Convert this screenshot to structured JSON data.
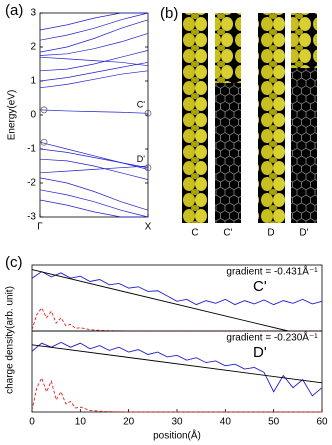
{
  "chart_data": [
    {
      "type": "line",
      "panel": "(a)",
      "y_label": "Energy(eV)",
      "xlim": [
        0,
        1
      ],
      "ylim": [
        -3,
        3
      ],
      "xticks": [
        {
          "value": 0,
          "label": "Γ"
        },
        {
          "value": 1,
          "label": "X"
        }
      ],
      "yticks": [
        -3,
        -2,
        -1,
        0,
        1,
        2,
        3
      ],
      "state_labels": [
        "C'",
        "D'"
      ],
      "x": [
        0,
        0.25,
        0.5,
        0.75,
        1
      ],
      "series": [
        {
          "color": "#1f1fd0",
          "values": [
            0.15,
            0.12,
            0.1,
            0.08,
            0.05
          ]
        },
        {
          "color": "#1f1fd0",
          "values": [
            -0.8,
            -1.0,
            -1.2,
            -1.4,
            -1.55
          ]
        },
        {
          "color": "#1f1fd0",
          "values": [
            1.7,
            1.65,
            1.6,
            1.55,
            1.45
          ]
        },
        {
          "color": "#1f1fd0",
          "values": [
            1.75,
            1.8,
            1.95,
            2.15,
            2.4
          ]
        },
        {
          "color": "#1f1fd0",
          "values": [
            1.85,
            2.0,
            2.25,
            2.55,
            2.8
          ]
        },
        {
          "color": "#1f1fd0",
          "values": [
            0.8,
            0.9,
            1.05,
            1.2,
            1.3
          ]
        },
        {
          "color": "#1f1fd0",
          "values": [
            1.0,
            1.1,
            1.25,
            1.4,
            1.55
          ]
        },
        {
          "color": "#1f1fd0",
          "values": [
            1.3,
            1.35,
            1.5,
            1.7,
            1.9
          ]
        },
        {
          "color": "#1f1fd0",
          "values": [
            2.2,
            2.35,
            2.55,
            2.8,
            3.0
          ]
        },
        {
          "color": "#1f1fd0",
          "values": [
            2.5,
            2.65,
            2.85,
            3.0,
            3.0
          ]
        },
        {
          "color": "#1f1fd0",
          "values": [
            -1.7,
            -1.65,
            -1.6,
            -1.55,
            -1.5
          ]
        },
        {
          "color": "#1f1fd0",
          "values": [
            -1.0,
            -1.1,
            -1.25,
            -1.4,
            -1.6
          ]
        },
        {
          "color": "#1f1fd0",
          "values": [
            -1.3,
            -1.35,
            -1.5,
            -1.7,
            -1.9
          ]
        },
        {
          "color": "#1f1fd0",
          "values": [
            -1.85,
            -2.0,
            -2.25,
            -2.55,
            -2.8
          ]
        },
        {
          "color": "#1f1fd0",
          "values": [
            -2.2,
            -2.35,
            -2.55,
            -2.8,
            -3.0
          ]
        },
        {
          "color": "#1f1fd0",
          "values": [
            -2.5,
            -2.65,
            -2.85,
            -3.0,
            -3.0
          ]
        }
      ]
    },
    {
      "type": "line",
      "panel": "(c)",
      "label": "C'",
      "gradient_label": "gradient = -0.431Å⁻¹",
      "y_label": "charge density(arb. unit)",
      "xlim": [
        0,
        60
      ],
      "ylim": [
        0,
        10
      ],
      "series": [
        {
          "color": "#1f1fd0",
          "x": [
            0,
            2,
            4,
            6,
            8,
            10,
            12,
            14,
            16,
            18,
            20,
            22,
            24,
            26,
            28,
            30,
            32,
            34,
            36,
            38,
            40,
            42,
            44,
            46,
            48,
            50,
            52,
            54,
            56,
            58,
            60
          ],
          "values": [
            8.0,
            9.0,
            8.2,
            8.8,
            8.0,
            8.3,
            7.5,
            7.8,
            7.0,
            7.2,
            6.5,
            6.7,
            6.0,
            6.1,
            5.3,
            4.5,
            4.8,
            4.0,
            4.6,
            4.2,
            4.8,
            4.0,
            4.6,
            4.1,
            4.7,
            4.0,
            4.6,
            4.2,
            4.8,
            4.1,
            4.5
          ]
        },
        {
          "color": "#e02020",
          "dashed": true,
          "x": [
            0,
            1,
            2,
            3,
            4,
            5,
            6,
            7,
            8,
            9,
            10,
            12,
            14,
            16,
            20,
            30,
            40,
            50,
            60
          ],
          "values": [
            0.2,
            2.5,
            3.5,
            2.0,
            3.0,
            1.2,
            2.0,
            0.8,
            1.0,
            0.4,
            0.5,
            0.2,
            0.1,
            0.05,
            0,
            0,
            0,
            0,
            0
          ]
        },
        {
          "color": "#000000",
          "x": [
            0,
            53
          ],
          "values": [
            9.3,
            0
          ]
        }
      ]
    },
    {
      "type": "line",
      "label": "D'",
      "gradient_label": "gradient = -0.230Å⁻¹",
      "x_label": "position(Å)",
      "xlim": [
        0,
        60
      ],
      "ylim": [
        0,
        10
      ],
      "xticks": [
        0,
        10,
        20,
        30,
        40,
        50,
        60
      ],
      "series": [
        {
          "color": "#1f1fd0",
          "x": [
            0,
            2,
            4,
            6,
            8,
            10,
            12,
            14,
            16,
            18,
            20,
            22,
            24,
            26,
            28,
            30,
            32,
            34,
            36,
            38,
            40,
            42,
            44,
            46,
            48,
            50,
            52,
            54,
            56,
            58,
            60
          ],
          "values": [
            7.5,
            8.5,
            8.0,
            8.6,
            8.0,
            8.5,
            7.8,
            8.2,
            7.6,
            8.0,
            7.4,
            7.7,
            7.1,
            7.4,
            6.8,
            7.0,
            6.4,
            6.7,
            6.1,
            6.3,
            5.7,
            5.9,
            5.3,
            5.5,
            4.9,
            2.5,
            4.5,
            3.0,
            4.0,
            2.0,
            3.0
          ]
        },
        {
          "color": "#e02020",
          "dashed": true,
          "x": [
            0,
            1,
            2,
            3,
            4,
            5,
            6,
            7,
            8,
            9,
            10,
            12,
            14,
            16,
            20,
            30,
            40,
            50,
            60
          ],
          "values": [
            0.2,
            3.0,
            4.2,
            2.5,
            3.8,
            1.5,
            2.5,
            1.0,
            1.3,
            0.5,
            0.6,
            0.2,
            0.1,
            0.05,
            0,
            0,
            0,
            0,
            0
          ]
        },
        {
          "color": "#000000",
          "x": [
            0,
            60
          ],
          "values": [
            8.3,
            3.6
          ]
        }
      ]
    }
  ],
  "image_panel": {
    "panel": "(b)",
    "labels": [
      "C",
      "C'",
      "D",
      "D'"
    ]
  }
}
